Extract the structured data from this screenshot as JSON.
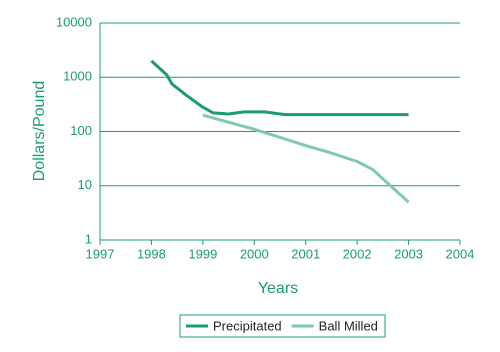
{
  "chart_data": {
    "type": "line",
    "x_label": "Years",
    "y_label": "Dollars/Pound",
    "xlim": [
      1997,
      2004
    ],
    "xticks": [
      1997,
      1998,
      1999,
      2000,
      2001,
      2002,
      2003,
      2004
    ],
    "ylim": [
      1,
      10000
    ],
    "yticks": [
      1,
      10,
      100,
      1000,
      10000
    ],
    "log_y": true,
    "grid": true,
    "legend": "bottom",
    "series": [
      {
        "name": "Precipitated",
        "color": "#1a9c6e",
        "x": [
          1998,
          1998.3,
          1998.4,
          1998.7,
          1999,
          1999.2,
          1999.5,
          1999.8,
          2000.2,
          2000.6,
          2001,
          2002,
          2003
        ],
        "values": [
          2000,
          1100,
          750,
          450,
          280,
          220,
          210,
          230,
          230,
          205,
          205,
          205,
          205
        ]
      },
      {
        "name": "Ball Milled",
        "color": "#7fcaa8",
        "x": [
          1999,
          2000,
          2001,
          2001.5,
          2002,
          2002.3,
          2002.6,
          2003
        ],
        "values": [
          200,
          110,
          55,
          40,
          28,
          20,
          11,
          5
        ]
      }
    ]
  }
}
